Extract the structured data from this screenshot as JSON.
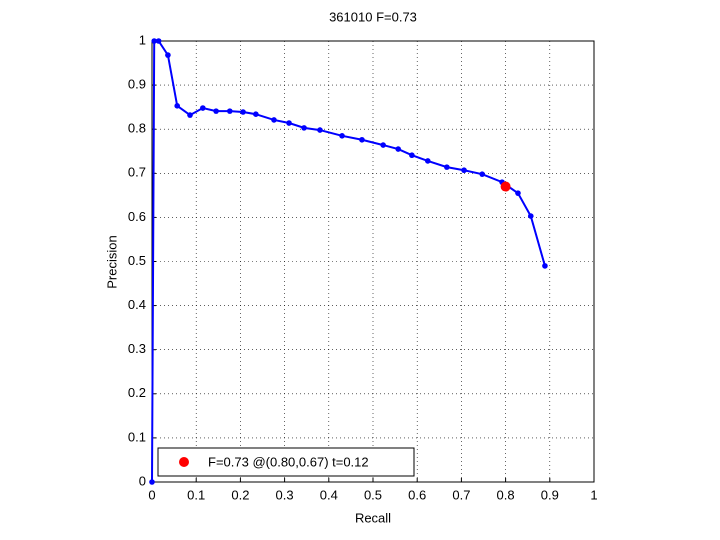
{
  "chart_data": {
    "type": "line",
    "title": "361010 F=0.73",
    "x_label": "Recall",
    "y_label": "Precision",
    "xlim": [
      0,
      1
    ],
    "ylim": [
      0,
      1
    ],
    "xticks": [
      0,
      0.1,
      0.2,
      0.3,
      0.4,
      0.5,
      0.6,
      0.7,
      0.8,
      0.9,
      1
    ],
    "yticks": [
      0,
      0.1,
      0.2,
      0.3,
      0.4,
      0.5,
      0.6,
      0.7,
      0.8,
      0.9,
      1
    ],
    "grid": true,
    "legend": "lower left",
    "series": [
      {
        "color": "#0000ff",
        "x": [
          0,
          0.005,
          0.015,
          0.036,
          0.057,
          0.086,
          0.115,
          0.145,
          0.176,
          0.206,
          0.235,
          0.276,
          0.31,
          0.344,
          0.38,
          0.43,
          0.475,
          0.523,
          0.557,
          0.588,
          0.624,
          0.667,
          0.706,
          0.747,
          0.792,
          0.828,
          0.857,
          0.889
        ],
        "values": [
          0,
          1,
          1,
          0.968,
          0.853,
          0.832,
          0.848,
          0.841,
          0.841,
          0.839,
          0.834,
          0.821,
          0.814,
          0.803,
          0.798,
          0.785,
          0.776,
          0.764,
          0.755,
          0.741,
          0.728,
          0.714,
          0.707,
          0.698,
          0.68,
          0.655,
          0.603,
          0.49
        ]
      },
      {
        "name": "F=0.73 @(0.80,0.67) t=0.12",
        "color": "#ff0000",
        "x": [
          0.8
        ],
        "values": [
          0.67
        ]
      }
    ]
  }
}
